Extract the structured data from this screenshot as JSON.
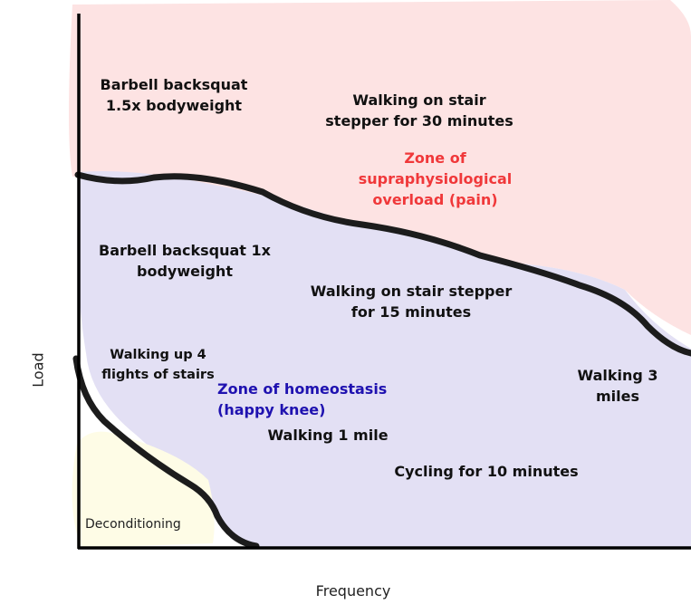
{
  "axes": {
    "x_label": "Frequency",
    "y_label": "Load"
  },
  "zones": {
    "overload": {
      "label": "Zone of supraphysiological overload (pain)",
      "color": "#fde3e3",
      "text_color": "#f0383a"
    },
    "homeostasis": {
      "label": "Zone of homeostasis (happy knee)",
      "color": "#e3e0f4",
      "text_color": "#1f12b0"
    },
    "deconditioning": {
      "label": "Deconditioning",
      "color": "#fefce6"
    }
  },
  "activities": {
    "squat_15": "Barbell backsquat 1.5x bodyweight",
    "stair_30": "Walking on stair stepper for 30 minutes",
    "squat_1": "Barbell backsquat 1x bodyweight",
    "stair_15": "Walking on stair stepper for 15 minutes",
    "flights_4": "Walking up 4 flights of stairs",
    "miles_3": "Walking 3 miles",
    "mile_1": "Walking 1 mile",
    "cycling_10": "Cycling for 10 minutes"
  }
}
